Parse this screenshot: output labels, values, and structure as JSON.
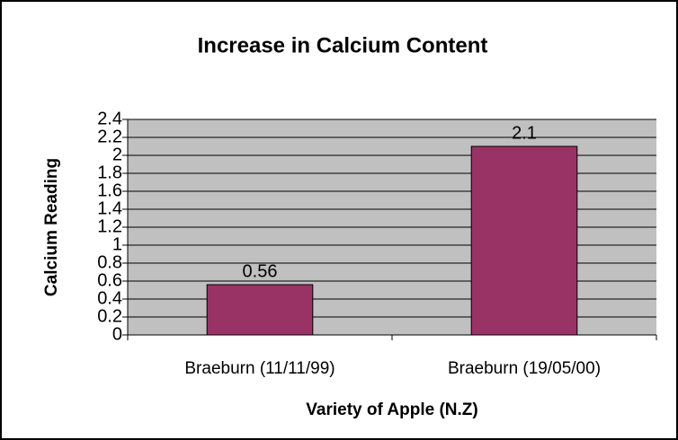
{
  "chart_data": {
    "type": "bar",
    "title": "Increase in Calcium Content",
    "x_label": "Variety of Apple (N.Z)",
    "y_label": "Calcium Reading",
    "categories": [
      "Braeburn (11/11/99)",
      "Braeburn (19/05/00)"
    ],
    "values": [
      0.56,
      2.1
    ],
    "color": "#993366",
    "ylim": [
      0,
      2.4
    ],
    "yticks": [
      0,
      0.2,
      0.4,
      0.6,
      0.8,
      1,
      1.2,
      1.4,
      1.6,
      1.8,
      2,
      2.2,
      2.4
    ],
    "grid": true,
    "plot_background": "#c0c0c0"
  }
}
